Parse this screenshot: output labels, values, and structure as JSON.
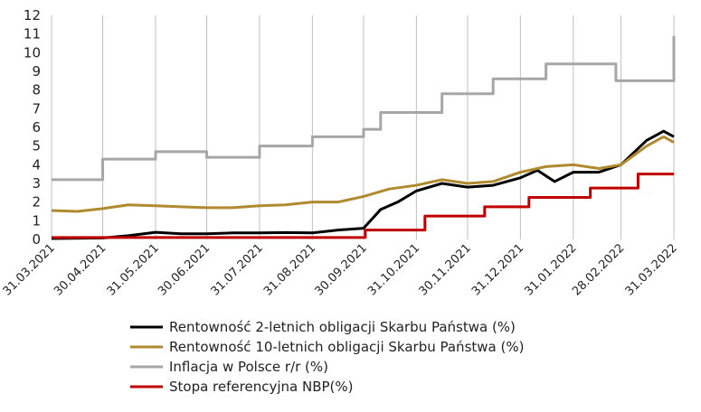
{
  "chart_data": {
    "type": "line",
    "title": "",
    "xlabel": "",
    "ylabel": "",
    "ylim": [
      0,
      12
    ],
    "yticks": [
      0,
      1,
      2,
      3,
      4,
      5,
      6,
      7,
      8,
      9,
      10,
      11,
      12
    ],
    "grid": "vertical lines at date ticks",
    "legend_position": "bottom",
    "x_tick_labels": [
      "31.03.2021",
      "30.04.2021",
      "31.05.2021",
      "30.06.2021",
      "31.07.2021",
      "31.08.2021",
      "30.09.2021",
      "31.10.2021",
      "30.11.2021",
      "31.12.2021",
      "31.01.2022",
      "28.02.2022",
      "31.03.2022"
    ],
    "series": [
      {
        "name": "Rentowność 2-letnich obligacji Skarbu Państwa (%)",
        "color": "#000000",
        "x": [
          "31.03.2021",
          "30.04.2021",
          "15.05.2021",
          "31.05.2021",
          "15.06.2021",
          "30.06.2021",
          "15.07.2021",
          "31.07.2021",
          "15.08.2021",
          "31.08.2021",
          "15.09.2021",
          "30.09.2021",
          "10.10.2021",
          "20.10.2021",
          "31.10.2021",
          "15.11.2021",
          "30.11.2021",
          "15.12.2021",
          "31.12.2021",
          "10.01.2022",
          "20.01.2022",
          "31.01.2022",
          "15.02.2022",
          "28.02.2022",
          "15.03.2022",
          "25.03.2022",
          "31.03.2022"
        ],
        "values": [
          0.05,
          0.08,
          0.2,
          0.38,
          0.3,
          0.3,
          0.35,
          0.35,
          0.37,
          0.35,
          0.5,
          0.6,
          1.6,
          2.0,
          2.6,
          3.0,
          2.8,
          2.9,
          3.3,
          3.7,
          3.1,
          3.6,
          3.6,
          4.0,
          5.3,
          5.8,
          5.5
        ]
      },
      {
        "name": "Rentowność 10-letnich obligacji Skarbu Państwa (%)",
        "color": "#b08a2e",
        "x": [
          "31.03.2021",
          "15.04.2021",
          "30.04.2021",
          "15.05.2021",
          "31.05.2021",
          "15.06.2021",
          "30.06.2021",
          "15.07.2021",
          "31.07.2021",
          "15.08.2021",
          "31.08.2021",
          "15.09.2021",
          "30.09.2021",
          "15.10.2021",
          "31.10.2021",
          "15.11.2021",
          "30.11.2021",
          "15.12.2021",
          "31.12.2021",
          "15.01.2022",
          "31.01.2022",
          "15.02.2022",
          "28.02.2022",
          "15.03.2022",
          "25.03.2022",
          "31.03.2022"
        ],
        "values": [
          1.55,
          1.5,
          1.65,
          1.85,
          1.8,
          1.75,
          1.7,
          1.7,
          1.8,
          1.85,
          2.0,
          2.0,
          2.3,
          2.7,
          2.9,
          3.2,
          3.0,
          3.1,
          3.6,
          3.9,
          4.0,
          3.8,
          4.0,
          5.0,
          5.5,
          5.2
        ]
      },
      {
        "name": "Inflacja w Polsce r/r (%)",
        "color": "#a6a6a6",
        "step": true,
        "x": [
          "31.03.2021",
          "30.04.2021",
          "31.05.2021",
          "30.06.2021",
          "31.07.2021",
          "31.08.2021",
          "30.09.2021",
          "10.10.2021",
          "15.11.2021",
          "15.12.2021",
          "15.01.2022",
          "25.02.2022",
          "30.03.2022",
          "31.03.2022"
        ],
        "values": [
          3.2,
          4.3,
          4.7,
          4.4,
          5.0,
          5.5,
          5.9,
          6.8,
          7.8,
          8.6,
          9.4,
          8.5,
          8.5,
          10.9
        ]
      },
      {
        "name": "Stopa referencyjna NBP(%)",
        "color": "#c00000",
        "step": true,
        "x": [
          "31.03.2021",
          "01.10.2021",
          "05.11.2021",
          "10.12.2021",
          "05.01.2022",
          "10.02.2022",
          "10.03.2022",
          "31.03.2022"
        ],
        "values": [
          0.1,
          0.5,
          1.25,
          1.75,
          2.25,
          2.75,
          3.5,
          3.5
        ]
      }
    ]
  }
}
